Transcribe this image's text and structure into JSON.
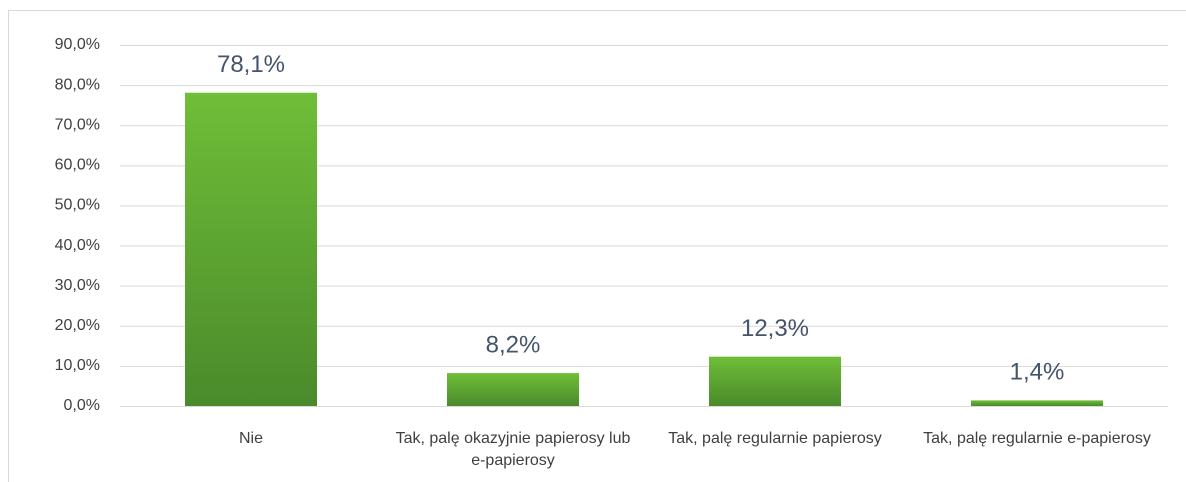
{
  "chart_data": {
    "type": "bar",
    "categories": [
      "Nie",
      "Tak, palę okazyjnie papierosy lub e-papierosy",
      "Tak, palę regularnie papierosy",
      "Tak, palę regularnie e-papierosy"
    ],
    "values": [
      78.1,
      8.2,
      12.3,
      1.4
    ],
    "value_labels": [
      "78,1%",
      "8,2%",
      "12,3%",
      "1,4%"
    ],
    "color": "#5da832",
    "ylim": [
      0,
      90
    ],
    "yticks": [
      {
        "value": 0,
        "label": "0,0%"
      },
      {
        "value": 10,
        "label": "10,0%"
      },
      {
        "value": 20,
        "label": "20,0%"
      },
      {
        "value": 30,
        "label": "30,0%"
      },
      {
        "value": 40,
        "label": "40,0%"
      },
      {
        "value": 50,
        "label": "50,0%"
      },
      {
        "value": 60,
        "label": "60,0%"
      },
      {
        "value": 70,
        "label": "70,0%"
      },
      {
        "value": 80,
        "label": "80,0%"
      },
      {
        "value": 90,
        "label": "90,0%"
      }
    ],
    "grid": true
  }
}
